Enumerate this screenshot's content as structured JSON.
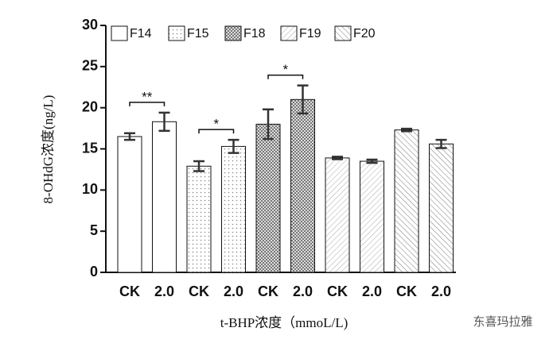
{
  "chart_data": {
    "type": "bar",
    "y_label": "8-OHdG浓度(ng/L)",
    "x_label": "t-BHP浓度（mmoL/L)",
    "categories": [
      "CK",
      "2.0"
    ],
    "series": [
      {
        "name": "F14",
        "pattern": "none",
        "values": [
          16.5,
          18.3
        ],
        "errors": [
          0.4,
          1.1
        ],
        "significance": "**"
      },
      {
        "name": "F15",
        "pattern": "dots",
        "values": [
          12.9,
          15.3
        ],
        "errors": [
          0.6,
          0.8
        ],
        "significance": "*"
      },
      {
        "name": "F18",
        "pattern": "checker",
        "values": [
          18.0,
          21.0
        ],
        "errors": [
          1.8,
          1.7
        ],
        "significance": "*"
      },
      {
        "name": "F19",
        "pattern": "hatch",
        "values": [
          13.9,
          13.5
        ],
        "errors": [
          0.15,
          0.2
        ]
      },
      {
        "name": "F20",
        "pattern": "backhatch",
        "values": [
          17.3,
          15.6
        ],
        "errors": [
          0.15,
          0.5
        ]
      }
    ],
    "ylim": [
      0,
      30
    ],
    "yticks": [
      0,
      5,
      10,
      15,
      20,
      25,
      30
    ],
    "watermark": "东喜玛拉雅"
  }
}
